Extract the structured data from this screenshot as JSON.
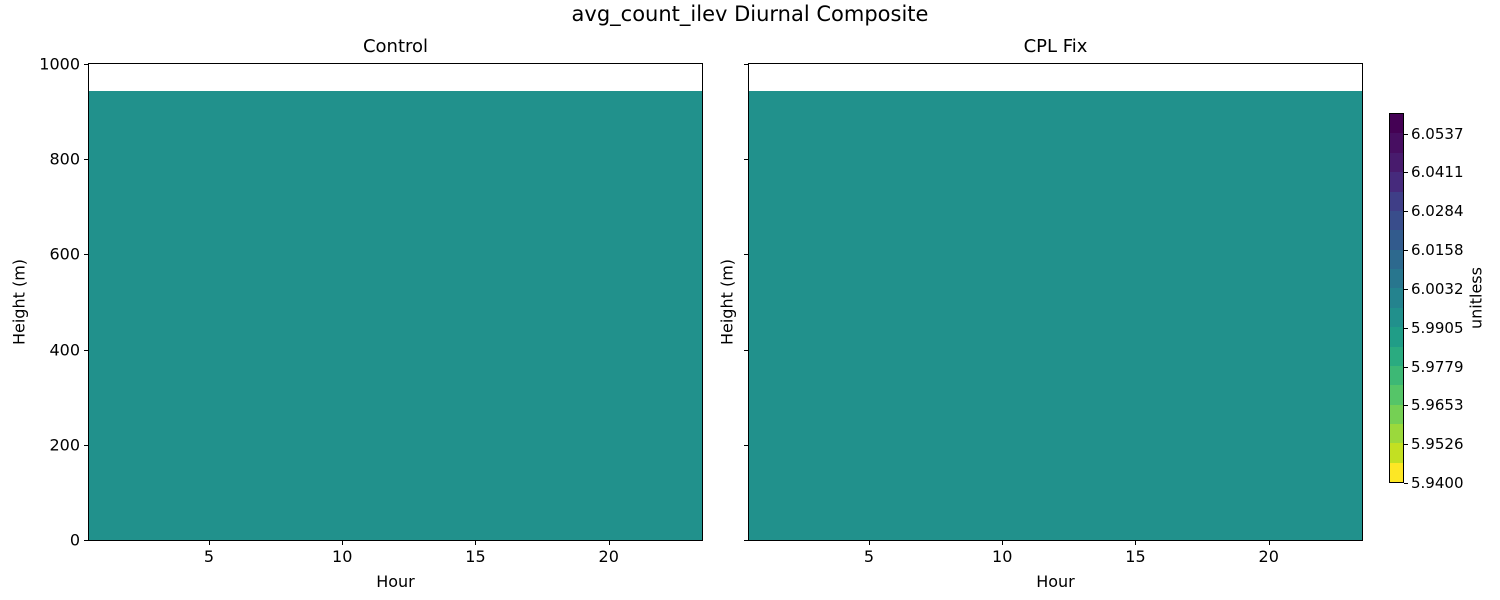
{
  "figure": {
    "title": "avg_count_ilev Diurnal Composite",
    "background": "#ffffff",
    "spine_color": "#000000"
  },
  "chart_data": {
    "type": "heatmap",
    "title": "avg_count_ilev Diurnal Composite",
    "layout_hint": "two side-by-side panels sharing axes, shared discrete colorbar on right, no grid",
    "panels": [
      {
        "title": "Control",
        "xlabel": "Hour",
        "ylabel": "Height (m)",
        "show_ytick_labels": true,
        "fill_color": "#21918c",
        "fill_value_estimate": 5.997,
        "data_top_m": 943
      },
      {
        "title": "CPL Fix",
        "xlabel": "Hour",
        "ylabel": "Height (m)",
        "show_ytick_labels": false,
        "fill_color": "#21918c",
        "fill_value_estimate": 5.997,
        "data_top_m": 943
      }
    ],
    "x_axis": {
      "label": "Hour",
      "range": [
        0.5,
        23.5
      ],
      "ticks": [
        5,
        10,
        15,
        20
      ]
    },
    "y_axis": {
      "label": "Height (m)",
      "range": [
        0,
        1000
      ],
      "ticks": [
        0,
        200,
        400,
        600,
        800,
        1000
      ]
    },
    "note": "Both panels depict a uniform field value (~5.997, teal) at all hours from 0 m up to ~943 m; blank (white) above that height.",
    "colorbar": {
      "label": "unitless",
      "vmin": 5.94,
      "vmax": 6.0604,
      "tick_values": [
        6.0537,
        6.0411,
        6.0284,
        6.0158,
        6.0032,
        5.9905,
        5.9779,
        5.9653,
        5.9526,
        5.94
      ],
      "tick_labels": [
        "6.0537",
        "6.0411",
        "6.0284",
        "6.0158",
        "6.0032",
        "5.9905",
        "5.9779",
        "5.9653",
        "5.9526",
        "5.9400"
      ],
      "n_segments": 19,
      "segments_top_to_bottom": [
        "#440154",
        "#470e61",
        "#481b6d",
        "#462a7c",
        "#3f3e87",
        "#394d8b",
        "#325b8d",
        "#2d698e",
        "#28768e",
        "#24838e",
        "#21908c",
        "#209d87",
        "#2aab80",
        "#3db875",
        "#55c568",
        "#75d054",
        "#9bd93c",
        "#c3e022",
        "#fde725"
      ]
    }
  }
}
